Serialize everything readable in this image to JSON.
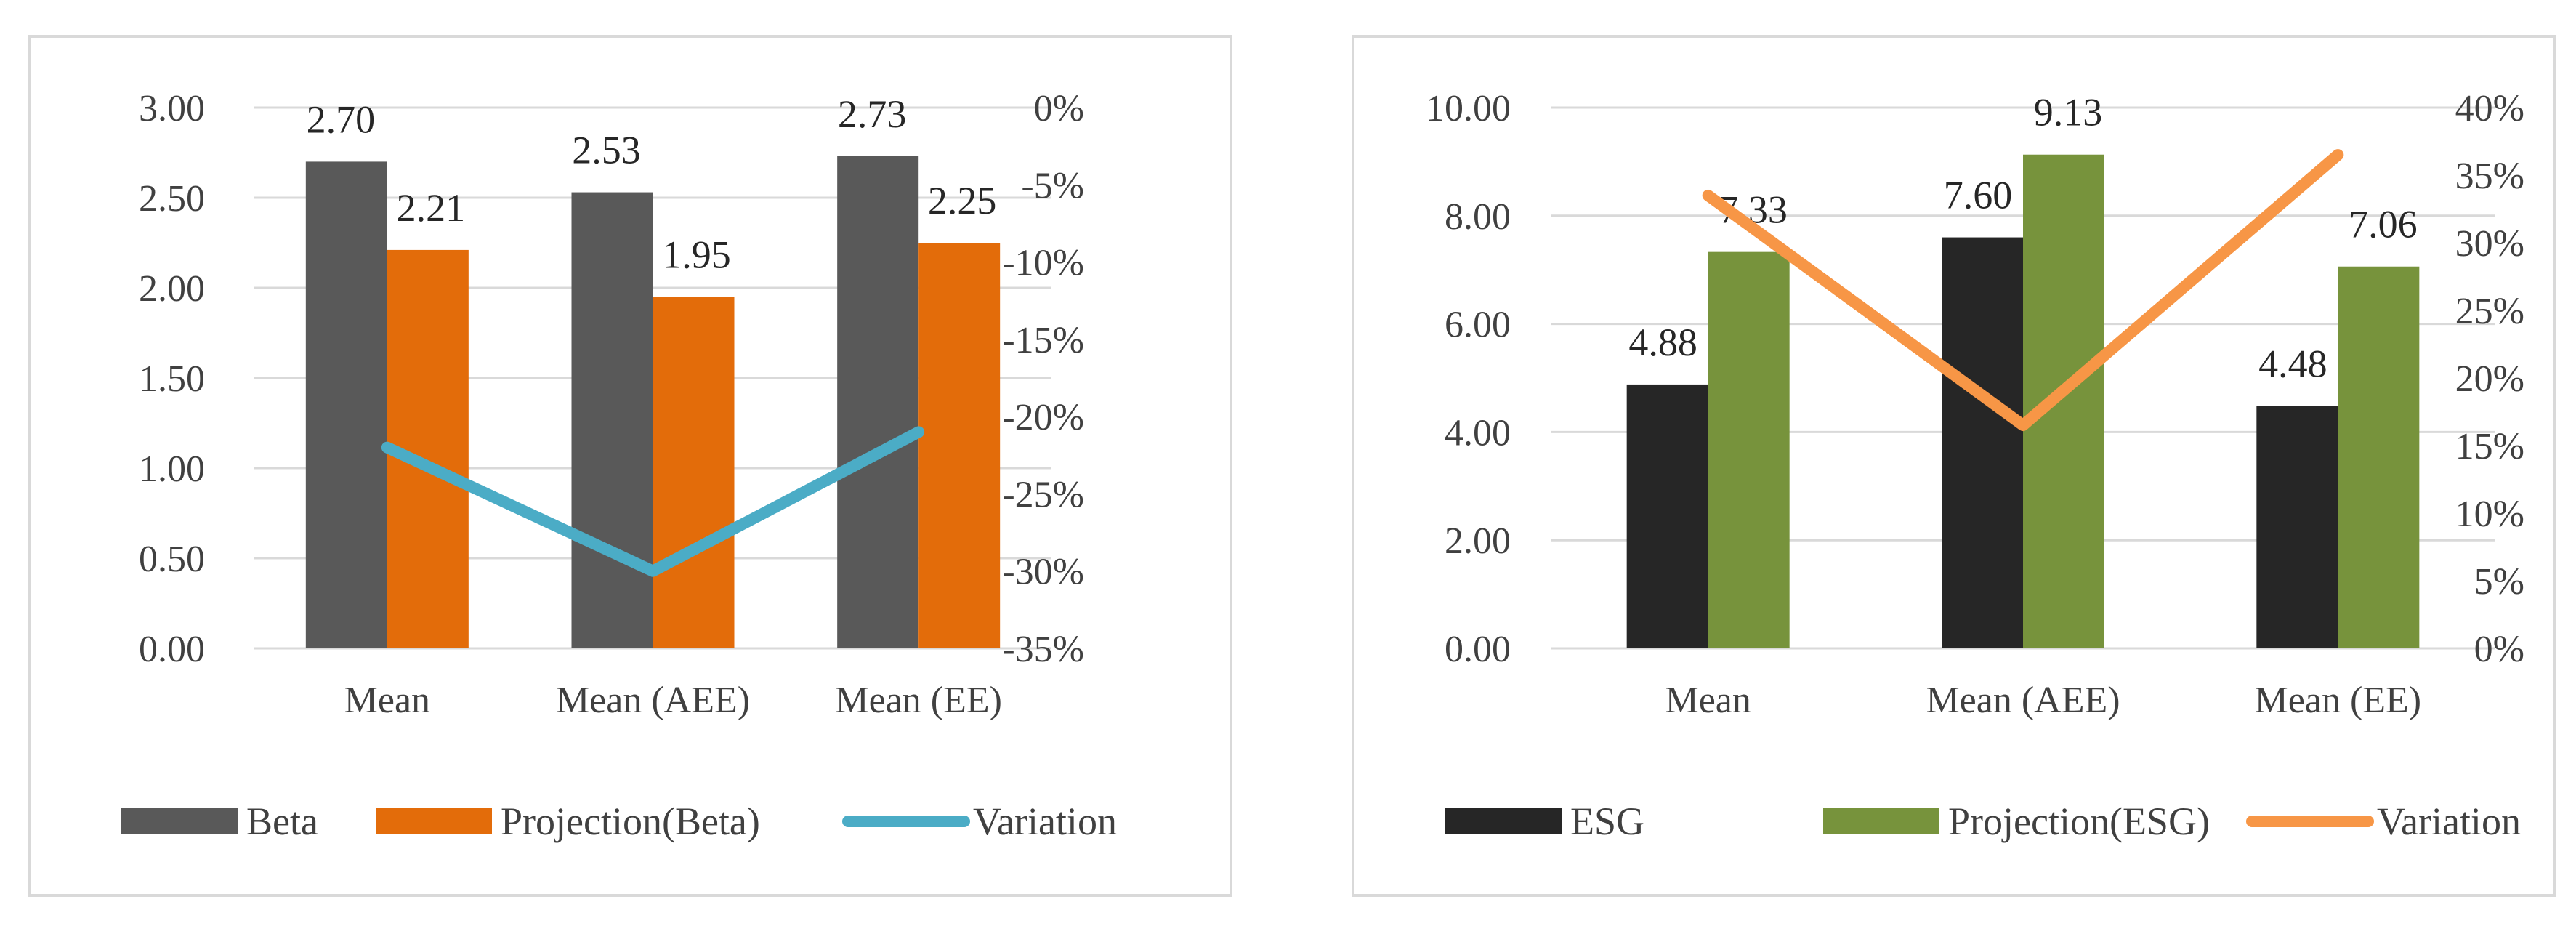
{
  "chart_data": [
    {
      "type": "bar",
      "title": "",
      "categories": [
        "Mean",
        "Mean (AEE)",
        "Mean (EE)"
      ],
      "series": [
        {
          "name": "Beta",
          "values": [
            2.7,
            2.53,
            2.73
          ],
          "labels": [
            "2.70",
            "2.53",
            "2.73"
          ],
          "color": "#595959"
        },
        {
          "name": "Projection(Beta)",
          "values": [
            2.21,
            1.95,
            2.25
          ],
          "labels": [
            "2.21",
            "1.95",
            "2.25"
          ],
          "color": "#e36c0a"
        }
      ],
      "line_series": {
        "name": "Variation",
        "values": [
          -0.22,
          -0.3,
          -0.21
        ],
        "color": "#4bacc6",
        "axis": "secondary"
      },
      "ylim": [
        0,
        3
      ],
      "yticks": [
        "0.00",
        "0.50",
        "1.00",
        "1.50",
        "2.00",
        "2.50",
        "3.00"
      ],
      "y2lim": [
        -0.35,
        0
      ],
      "y2ticks": [
        "-35%",
        "-30%",
        "-25%",
        "-20%",
        "-15%",
        "-10%",
        "-5%",
        "0%"
      ],
      "xlabel": "",
      "ylabel": "",
      "grid": true,
      "legend": "bottom",
      "legend_labels": [
        "Beta",
        "Projection(Beta)",
        "Variation"
      ]
    },
    {
      "type": "bar",
      "title": "",
      "categories": [
        "Mean",
        "Mean (AEE)",
        "Mean (EE)"
      ],
      "series": [
        {
          "name": "ESG",
          "values": [
            4.88,
            7.6,
            4.48
          ],
          "labels": [
            "4.88",
            "7.60",
            "4.48"
          ],
          "color": "#262626"
        },
        {
          "name": "Projection(ESG)",
          "values": [
            7.33,
            9.13,
            7.06
          ],
          "labels": [
            "7.33",
            "9.13",
            "7.06"
          ],
          "color": "#77933c"
        }
      ],
      "line_series": {
        "name": "Variation",
        "values": [
          0.335,
          0.165,
          0.365
        ],
        "color": "#f79646",
        "axis": "secondary"
      },
      "ylim": [
        0,
        10
      ],
      "yticks": [
        "0.00",
        "2.00",
        "4.00",
        "6.00",
        "8.00",
        "10.00"
      ],
      "y2lim": [
        0,
        0.4
      ],
      "y2ticks": [
        "0%",
        "5%",
        "10%",
        "15%",
        "20%",
        "25%",
        "30%",
        "35%",
        "40%"
      ],
      "xlabel": "",
      "ylabel": "",
      "grid": true,
      "legend": "bottom",
      "legend_labels": [
        "ESG",
        "Projection(ESG)",
        "Variation"
      ]
    }
  ]
}
